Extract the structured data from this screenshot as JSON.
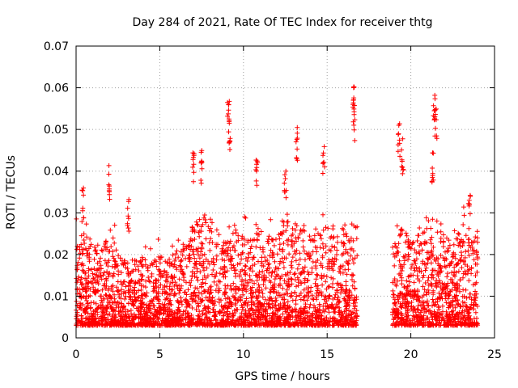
{
  "chart_data": {
    "type": "scatter",
    "title": "Day 284 of 2021, Rate Of TEC Index for receiver thtg",
    "xlabel": "GPS time / hours",
    "ylabel": "ROTI / TECUs",
    "xlim": [
      0,
      25
    ],
    "ylim": [
      0,
      0.07
    ],
    "x_ticks": [
      0,
      5,
      10,
      15,
      20,
      25
    ],
    "y_ticks": [
      0,
      0.01,
      0.02,
      0.03,
      0.04,
      0.05,
      0.06,
      0.07
    ],
    "x_tick_labels": [
      "0",
      "5",
      "10",
      "15",
      "20",
      "25"
    ],
    "y_tick_labels": [
      "0",
      "0.01",
      "0.02",
      "0.03",
      "0.04",
      "0.05",
      "0.06",
      "0.07"
    ],
    "grid": true,
    "marker": "+",
    "color": "#ff0000",
    "data_gap_hours": [
      16.8,
      18.9
    ],
    "series": [
      {
        "name": "ROTI",
        "envelope_x": [
          0,
          0.5,
          1,
          1.5,
          2,
          2.5,
          3,
          3.5,
          4,
          4.5,
          5,
          5.5,
          6,
          6.5,
          7,
          7.5,
          8,
          8.5,
          9,
          9.5,
          10,
          10.5,
          11,
          11.5,
          12,
          12.5,
          13,
          13.5,
          14,
          14.5,
          15,
          15.5,
          16,
          16.5,
          16.8,
          18.9,
          19.5,
          20,
          20.5,
          21,
          21.5,
          22,
          22.5,
          23,
          23.5,
          24
        ],
        "envelope_y_typical": [
          0.023,
          0.027,
          0.022,
          0.021,
          0.027,
          0.023,
          0.02,
          0.019,
          0.02,
          0.019,
          0.02,
          0.019,
          0.021,
          0.022,
          0.028,
          0.03,
          0.03,
          0.026,
          0.024,
          0.026,
          0.025,
          0.025,
          0.026,
          0.025,
          0.024,
          0.028,
          0.028,
          0.028,
          0.025,
          0.027,
          0.028,
          0.027,
          0.027,
          0.028,
          0.027,
          0.022,
          0.027,
          0.023,
          0.025,
          0.028,
          0.029,
          0.026,
          0.024,
          0.026,
          0.027,
          0.026
        ],
        "peaks": [
          {
            "x": 2.0,
            "y": 0.042
          },
          {
            "x": 0.4,
            "y": 0.036
          },
          {
            "x": 3.1,
            "y": 0.034
          },
          {
            "x": 7.0,
            "y": 0.045
          },
          {
            "x": 7.5,
            "y": 0.046
          },
          {
            "x": 9.1,
            "y": 0.058
          },
          {
            "x": 9.15,
            "y": 0.053
          },
          {
            "x": 10.8,
            "y": 0.044
          },
          {
            "x": 12.5,
            "y": 0.042
          },
          {
            "x": 13.2,
            "y": 0.051
          },
          {
            "x": 14.8,
            "y": 0.047
          },
          {
            "x": 16.6,
            "y": 0.062
          },
          {
            "x": 16.6,
            "y": 0.056
          },
          {
            "x": 19.3,
            "y": 0.052
          },
          {
            "x": 19.5,
            "y": 0.048
          },
          {
            "x": 21.4,
            "y": 0.06
          },
          {
            "x": 21.5,
            "y": 0.055
          },
          {
            "x": 21.3,
            "y": 0.046
          },
          {
            "x": 23.5,
            "y": 0.035
          }
        ]
      }
    ]
  }
}
